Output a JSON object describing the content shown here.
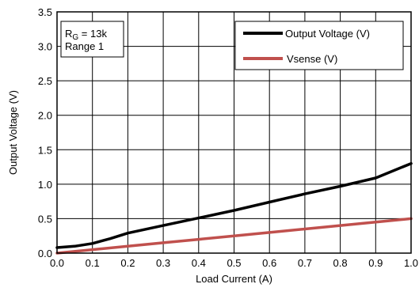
{
  "chart_data": {
    "type": "line",
    "xlabel": "Load Current (A)",
    "ylabel": "Output Voltage (V)",
    "xlim": [
      0,
      1.0
    ],
    "ylim": [
      0,
      3.5
    ],
    "x_ticks": [
      "0.0",
      "0.1",
      "0.2",
      "0.3",
      "0.4",
      "0.5",
      "0.6",
      "0.7",
      "0.8",
      "0.9",
      "1.0"
    ],
    "y_ticks": [
      "0.0",
      "0.5",
      "1.0",
      "1.5",
      "2.0",
      "2.5",
      "3.0",
      "3.5"
    ],
    "grid": true,
    "legend_position": "top-right",
    "annotation": {
      "line1_main": "R",
      "line1_sub": "G",
      "line1_rest": " = 13k",
      "line2": "Range 1"
    },
    "series": [
      {
        "name": "Output Voltage (V)",
        "color": "#000000",
        "x": [
          0.0,
          0.05,
          0.1,
          0.15,
          0.2,
          0.3,
          0.4,
          0.5,
          0.6,
          0.7,
          0.8,
          0.9,
          1.0
        ],
        "y": [
          0.08,
          0.1,
          0.14,
          0.21,
          0.29,
          0.4,
          0.51,
          0.62,
          0.74,
          0.86,
          0.97,
          1.09,
          1.3
        ]
      },
      {
        "name": "Vsense (V)",
        "color": "#c0504d",
        "x": [
          0.0,
          0.1,
          0.2,
          0.3,
          0.4,
          0.5,
          0.6,
          0.7,
          0.8,
          0.9,
          1.0
        ],
        "y": [
          0.0,
          0.05,
          0.1,
          0.15,
          0.2,
          0.25,
          0.3,
          0.35,
          0.4,
          0.45,
          0.5
        ]
      }
    ]
  }
}
